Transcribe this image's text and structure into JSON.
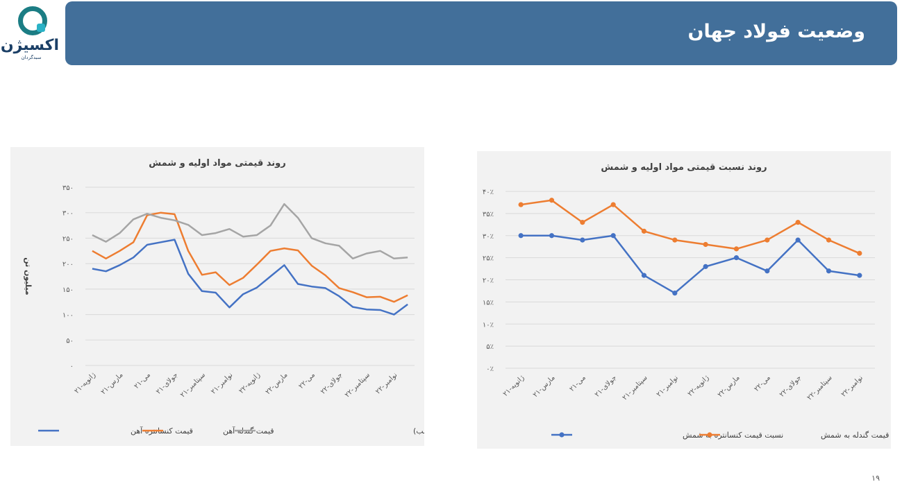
{
  "header": {
    "title": "وضعیت فولاد جهان"
  },
  "logo": {
    "name": "اکسیژن",
    "tagline": "سبدگردان"
  },
  "page_number": "۱۹",
  "chart_data": [
    {
      "type": "line",
      "title": "روند قیمتی مواد اولیه و شمش",
      "ylabel": "میلیون تن",
      "ylim": [
        0,
        350
      ],
      "yticks": [
        "۰",
        "۵۰",
        "۱۰۰",
        "۱۵۰",
        "۲۰۰",
        "۲۵۰",
        "۳۰۰",
        "۳۵۰"
      ],
      "categories": [
        "ژانویه-۲۱",
        "",
        "مارس-۲۱",
        "",
        "می-۲۱",
        "",
        "جولای-۲۱",
        "",
        "سپتامبر-۲۱",
        "",
        "نوامبر-۲۱",
        "",
        "ژانویه-۲۲",
        "",
        "مارس-۲۲",
        "",
        "می-۲۲",
        "",
        "جولای-۲۲",
        "",
        "سپتامبر-۲۲",
        "",
        "نوامبر-۲۲",
        ""
      ],
      "legend_position": "bottom",
      "series": [
        {
          "name": "قیمت کنسانتره آهن",
          "color": "#4472c4",
          "values": [
            190,
            185,
            197,
            212,
            237,
            242,
            247,
            180,
            146,
            143,
            114,
            140,
            153,
            175,
            197,
            160,
            155,
            152,
            136,
            115,
            110,
            109,
            100,
            120
          ]
        },
        {
          "name": "قیمت گندله آهن",
          "color": "#ed7d31",
          "values": [
            225,
            210,
            225,
            242,
            295,
            300,
            297,
            225,
            178,
            183,
            158,
            172,
            198,
            225,
            230,
            226,
            196,
            177,
            152,
            144,
            134,
            135,
            125,
            138
          ]
        },
        {
          "name": "قیمت شمش(متوسط قیمت بیلت و اسلب)",
          "color": "#a5a5a5",
          "values": [
            256,
            243,
            260,
            287,
            298,
            290,
            285,
            276,
            256,
            260,
            268,
            253,
            256,
            275,
            317,
            290,
            250,
            240,
            235,
            210,
            220,
            225,
            210,
            212
          ]
        }
      ]
    },
    {
      "type": "line",
      "title": "روند نسبت قیمتی مواد اولیه و شمش",
      "ylim": [
        0,
        40
      ],
      "yticks": [
        "۰٪",
        "۵٪",
        "۱۰٪",
        "۱۵٪",
        "۲۰٪",
        "۲۵٪",
        "۳۰٪",
        "۳۵٪",
        "۴۰٪"
      ],
      "categories": [
        "ژانویه-۲۱",
        "مارس-۲۱",
        "می-۲۱",
        "جولای-۲۱",
        "سپتامبر-۲۱",
        "نوامبر-۲۱",
        "ژانویه-۲۲",
        "مارس-۲۲",
        "می-۲۲",
        "جولای-۲۲",
        "سپتامبر-۲۲",
        "نوامبر-۲۲"
      ],
      "legend_position": "bottom",
      "series": [
        {
          "name": "نسبت قیمت کنسانتره به شمش",
          "color": "#4472c4",
          "markers": true,
          "values": [
            30,
            30,
            29,
            30,
            21,
            17,
            23,
            25,
            22,
            29,
            22,
            21
          ]
        },
        {
          "name": "نسبت قیمت گندله به شمش",
          "color": "#ed7d31",
          "markers": true,
          "values": [
            37,
            38,
            33,
            37,
            31,
            29,
            28,
            27,
            29,
            33,
            29,
            26
          ]
        }
      ]
    }
  ]
}
